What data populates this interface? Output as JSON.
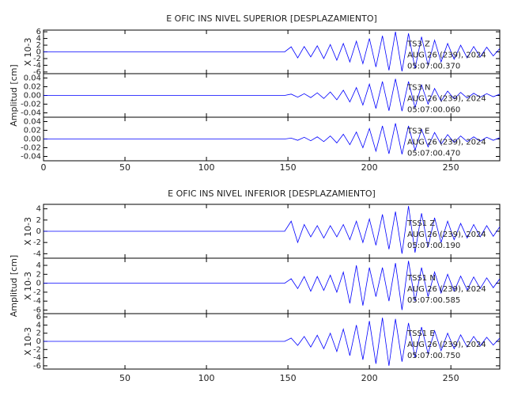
{
  "chart_data": [
    {
      "type": "line",
      "title": "E OFIC INS NIVEL SUPERIOR [DESPLAZAMIENTO]",
      "ylabel": "Amplitud [cm]",
      "color": "#0000ff",
      "xlim": [
        0,
        280
      ],
      "xticks": [
        0,
        50,
        100,
        150,
        200,
        250
      ],
      "x": [
        0,
        4,
        8,
        12,
        16,
        20,
        24,
        28,
        32,
        36,
        40,
        44,
        48,
        52,
        56,
        60,
        64,
        68,
        72,
        76,
        80,
        84,
        88,
        92,
        96,
        100,
        104,
        108,
        112,
        116,
        120,
        124,
        128,
        132,
        136,
        140,
        144,
        148,
        152,
        156,
        160,
        164,
        168,
        172,
        176,
        180,
        184,
        188,
        192,
        196,
        200,
        204,
        208,
        212,
        216,
        220,
        224,
        228,
        232,
        236,
        240,
        244,
        248,
        252,
        256,
        260,
        264,
        268,
        272,
        276,
        280
      ],
      "panels": [
        {
          "scale_label": "X 10-3",
          "ylim": [
            -6.5,
            6.5
          ],
          "yticks": [
            6,
            4,
            2,
            0,
            -2,
            -4,
            -6
          ],
          "annotations": [
            "TS3 Z",
            "AUG 26 (239), 2024",
            "05:07:00.370"
          ],
          "values": [
            0,
            0,
            0,
            0,
            0,
            0,
            0,
            0,
            0,
            0,
            0,
            0,
            0,
            0,
            0,
            0,
            0,
            0,
            0,
            0,
            0,
            0,
            0,
            0,
            0,
            0,
            0,
            0,
            0,
            0,
            0,
            0,
            0,
            0,
            0,
            0,
            0,
            0,
            1.5,
            -1.8,
            1.6,
            -1.5,
            1.8,
            -2,
            2.2,
            -2.5,
            2.5,
            -3,
            3.2,
            -3.5,
            4,
            -4.5,
            4.8,
            -5.5,
            6,
            -5.8,
            5.5,
            -5,
            4.5,
            -4,
            3.5,
            -3,
            2.5,
            -2.2,
            2,
            -1.8,
            1.6,
            -1.5,
            1.4,
            -1.2,
            1
          ]
        },
        {
          "ylim": [
            -0.05,
            0.05
          ],
          "yticks": [
            0.04,
            0.02,
            {
              "value": 0,
              "label": "0.00"
            },
            -0.02,
            -0.04
          ],
          "annotations": [
            "TS3 N",
            "AUG 26 (239), 2024",
            "05:07:00.060"
          ],
          "values": [
            0,
            0,
            0,
            0,
            0,
            0,
            0,
            0,
            0,
            0,
            0,
            0,
            0,
            0,
            0,
            0,
            0,
            0,
            0,
            0,
            0,
            0,
            0,
            0,
            0,
            0,
            0,
            0,
            0,
            0,
            0,
            0,
            0,
            0,
            0,
            0,
            0,
            0,
            0.003,
            -0.004,
            0.004,
            -0.005,
            0.006,
            -0.007,
            0.008,
            -0.01,
            0.012,
            -0.015,
            0.018,
            -0.022,
            0.026,
            -0.03,
            0.032,
            -0.035,
            0.038,
            -0.036,
            0.032,
            -0.028,
            0.024,
            -0.02,
            0.016,
            -0.013,
            0.01,
            -0.008,
            0.007,
            -0.006,
            0.005,
            -0.004,
            0.004,
            -0.003,
            0.003
          ]
        },
        {
          "ylim": [
            -0.05,
            0.05
          ],
          "yticks": [
            0.04,
            0.02,
            {
              "value": 0,
              "label": "0.00"
            },
            -0.02,
            -0.04
          ],
          "annotations": [
            "TS3 E",
            "AUG 26 (239), 2024",
            "05:07:00.470"
          ],
          "values": [
            0,
            0,
            0,
            0,
            0,
            0,
            0,
            0,
            0,
            0,
            0,
            0,
            0,
            0,
            0,
            0,
            0,
            0,
            0,
            0,
            0,
            0,
            0,
            0,
            0,
            0,
            0,
            0,
            0,
            0,
            0,
            0,
            0,
            0,
            0,
            0,
            0,
            0,
            0.002,
            -0.003,
            0.004,
            -0.004,
            0.005,
            -0.006,
            0.007,
            -0.009,
            0.011,
            -0.013,
            0.016,
            -0.02,
            0.024,
            -0.028,
            0.03,
            -0.034,
            0.036,
            -0.035,
            0.03,
            -0.026,
            0.022,
            -0.018,
            0.015,
            -0.012,
            0.01,
            -0.008,
            0.007,
            -0.006,
            0.005,
            -0.005,
            0.004,
            -0.003,
            0.003
          ]
        }
      ]
    },
    {
      "type": "line",
      "title": "E OFIC INS NIVEL INFERIOR [DESPLAZAMIENTO]",
      "ylabel": "Amplitud [cm]",
      "color": "#0000ff",
      "xlim": [
        0,
        280
      ],
      "xticks": [
        50,
        100,
        150,
        200,
        250
      ],
      "x": [
        0,
        4,
        8,
        12,
        16,
        20,
        24,
        28,
        32,
        36,
        40,
        44,
        48,
        52,
        56,
        60,
        64,
        68,
        72,
        76,
        80,
        84,
        88,
        92,
        96,
        100,
        104,
        108,
        112,
        116,
        120,
        124,
        128,
        132,
        136,
        140,
        144,
        148,
        152,
        156,
        160,
        164,
        168,
        172,
        176,
        180,
        184,
        188,
        192,
        196,
        200,
        204,
        208,
        212,
        216,
        220,
        224,
        228,
        232,
        236,
        240,
        244,
        248,
        252,
        256,
        260,
        264,
        268,
        272,
        276,
        280
      ],
      "panels": [
        {
          "scale_label": "X 10-3",
          "ylim": [
            -4.8,
            4.8
          ],
          "yticks": [
            4,
            2,
            0,
            -2,
            -4
          ],
          "annotations": [
            "TSS1 Z",
            "AUG 26 (239), 2024",
            "05:07:00.190"
          ],
          "values": [
            0,
            0,
            0,
            0,
            0,
            0,
            0,
            0,
            0,
            0,
            0,
            0,
            0,
            0,
            0,
            0,
            0,
            0,
            0,
            0,
            0,
            0,
            0,
            0,
            0,
            0,
            0,
            0,
            0,
            0,
            0,
            0,
            0,
            0,
            0,
            0,
            0,
            0,
            1.8,
            -2,
            1.2,
            -1,
            1,
            -1.2,
            1,
            -1,
            1.2,
            -1.5,
            1.8,
            -2,
            2.2,
            -2.5,
            3,
            -3.2,
            3.5,
            -4,
            4.5,
            -3.8,
            3.2,
            -2.8,
            2.4,
            -2,
            1.8,
            -1.5,
            1.4,
            -1.2,
            1.2,
            -1,
            1,
            -0.9,
            0.8
          ]
        },
        {
          "scale_label": "X 10-3",
          "ylim": [
            -6.8,
            5.6
          ],
          "yticks": [
            4,
            2,
            0,
            -2,
            -4,
            -6
          ],
          "annotations": [
            "TSS1 N",
            "AUG 26 (239), 2024",
            "05:07:00.585"
          ],
          "values": [
            0,
            0,
            0,
            0,
            0,
            0,
            0,
            0,
            0,
            0,
            0,
            0,
            0,
            0,
            0,
            0,
            0,
            0,
            0,
            0,
            0,
            0,
            0,
            0,
            0,
            0,
            0,
            0,
            0,
            0,
            0,
            0,
            0,
            0,
            0,
            0,
            0,
            0,
            1,
            -1.2,
            1.5,
            -1.8,
            1.5,
            -1.6,
            1.8,
            -2,
            2.5,
            -4.5,
            4,
            -5,
            3.5,
            -3,
            3.5,
            -4,
            4.5,
            -6,
            5,
            -4,
            3.5,
            -3,
            2.5,
            -2.2,
            2,
            -1.8,
            1.6,
            -1.5,
            1.4,
            -1.2,
            1.2,
            -1,
            1
          ]
        },
        {
          "scale_label": "X 10-3",
          "ylim": [
            -6.8,
            6.8
          ],
          "yticks": [
            6,
            4,
            2,
            0,
            -2,
            -4,
            -6
          ],
          "annotations": [
            "TSS1 E",
            "AUG 26 (239), 2024",
            "05:07:00.750"
          ],
          "values": [
            0,
            0,
            0,
            0,
            0,
            0,
            0,
            0,
            0,
            0,
            0,
            0,
            0,
            0,
            0,
            0,
            0,
            0,
            0,
            0,
            0,
            0,
            0,
            0,
            0,
            0,
            0,
            0,
            0,
            0,
            0,
            0,
            0,
            0,
            0,
            0,
            0,
            0,
            0.8,
            -1,
            1.2,
            -1.4,
            1.5,
            -1.8,
            2,
            -2.5,
            3,
            -3.5,
            4,
            -4.5,
            5,
            -5.5,
            5.8,
            -6,
            5.5,
            -5,
            4.5,
            -4,
            3.5,
            -3,
            2.6,
            -2.3,
            2,
            -1.8,
            1.6,
            -1.4,
            1.2,
            -1.1,
            1,
            -0.9,
            0.8
          ]
        }
      ]
    }
  ]
}
